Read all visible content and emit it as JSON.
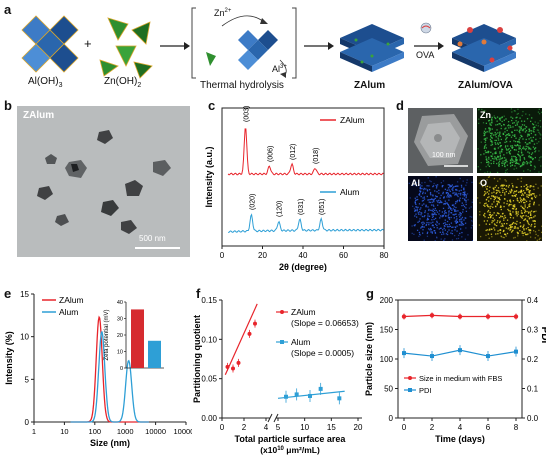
{
  "panel_a": {
    "label": "a",
    "aloh3": "Al(OH)",
    "aloh3_sub": "3",
    "znoh2": "Zn(OH)",
    "znoh2_sub": "2",
    "plus": "+",
    "zn_ion": "Zn",
    "zn_ion_sup": "2+",
    "al_ion": "Al",
    "al_ion_sup": "3+",
    "thermal": "Thermal hydrolysis",
    "zalum": "ZAlum",
    "ova": "OVA",
    "zalum_ova": "ZAlum/OVA"
  },
  "panel_b": {
    "label": "b",
    "title": "ZAlum",
    "scalebar": "500 nm"
  },
  "panel_c": {
    "label": "c",
    "legend_zalum": "ZAlum",
    "legend_alum": "Alum",
    "peaks_zalum": [
      "(003)",
      "(006)",
      "(012)",
      "(018)"
    ],
    "peaks_alum": [
      "(020)",
      "(120)",
      "(031)",
      "(051)"
    ]
  },
  "panel_d": {
    "label": "d",
    "scalebar": "100 nm",
    "zn": "Zn",
    "al": "Al",
    "o": "O"
  },
  "panel_e": {
    "label": "e",
    "legend_zalum": "ZAlum",
    "legend_alum": "Alum"
  },
  "panel_f": {
    "label": "f",
    "zalum_name": "ZAlum",
    "zalum_slope": "(Slope = 0.06653)",
    "alum_name": "Alum",
    "alum_slope": "(Slope = 0.0005)"
  },
  "panel_g": {
    "label": "g",
    "legend_size": "Size in medium with FBS",
    "legend_pdi": "PDI"
  },
  "colors": {
    "zalum": "#e8242b",
    "alum": "#2e9fd6",
    "bar_zalum": "#d62b2f",
    "bar_alum": "#2e9fd6",
    "plot_g": "#1f8fd1",
    "zn": "#3ac24a",
    "al": "#2f5ee0",
    "o": "#e8d52a"
  },
  "chart_data": [
    {
      "type": "line",
      "panel": "c",
      "xlabel": "2θ (degree)",
      "ylabel": "Intensity (a.u.)",
      "xlim": [
        0,
        80
      ],
      "xticks": [
        0,
        20,
        40,
        60,
        80
      ],
      "series": [
        {
          "name": "ZAlum",
          "peaks_x": [
            11.6,
            23.4,
            34.5,
            46.0
          ],
          "peak_labels": [
            "(003)",
            "(006)",
            "(012)",
            "(018)"
          ]
        },
        {
          "name": "Alum",
          "peaks_x": [
            14.5,
            28.0,
            38.4,
            49.0
          ],
          "peak_labels": [
            "(020)",
            "(120)",
            "(031)",
            "(051)"
          ]
        }
      ]
    },
    {
      "type": "line",
      "panel": "e",
      "xlabel": "Size (nm)",
      "ylabel": "Intensity (%)",
      "xscale": "log",
      "xlim": [
        1,
        100000
      ],
      "ylim": [
        0,
        15
      ],
      "xticks": [
        "1",
        "10",
        "100",
        "1000",
        "10000",
        "100000"
      ],
      "yticks": [
        0,
        5,
        10,
        15
      ],
      "series": [
        {
          "name": "ZAlum",
          "peak_x": 140,
          "peak_y": 12.3
        },
        {
          "name": "Alum",
          "peak_x": 170,
          "peak_y": 10.6
        },
        {
          "name": "Alum",
          "peak_x": 1300,
          "peak_y": 7.2
        }
      ],
      "inset": {
        "type": "bar",
        "ylabel": "Zeta potential (mV)",
        "ylim": [
          0,
          40
        ],
        "yticks": [
          0,
          10,
          20,
          30,
          40
        ],
        "categories": [
          "ZAlum",
          "Alum"
        ],
        "values": [
          35.5,
          16.5
        ]
      }
    },
    {
      "type": "scatter",
      "panel": "f",
      "xlabel": "Total particle surface area",
      "xunit": "(x10",
      "xunit_sup": "10",
      "xunit_rest": " μm²/mL)",
      "ylabel": "Partitioning  quotient",
      "ylim": [
        0,
        0.15
      ],
      "yticks": [
        "0.00",
        "0.05",
        "0.10",
        "0.15"
      ],
      "xticks": [
        "0",
        "2",
        "4",
        "5",
        "10",
        "15",
        "20"
      ],
      "xbreak": true,
      "series": [
        {
          "name": "ZAlum",
          "slope": 0.06653,
          "x": [
            0.5,
            1.0,
            1.5,
            2.5,
            3.0
          ],
          "y": [
            0.065,
            0.063,
            0.07,
            0.107,
            0.12
          ]
        },
        {
          "name": "Alum",
          "slope": 0.0005,
          "x": [
            6.5,
            8.5,
            11.0,
            13.0,
            16.5
          ],
          "y": [
            0.027,
            0.03,
            0.028,
            0.037,
            0.025
          ]
        }
      ]
    },
    {
      "type": "line",
      "panel": "g",
      "xlabel": "Time (days)",
      "ylabel": "Particle size (nm)",
      "y2label": "PDI",
      "xlim": [
        0,
        8
      ],
      "ylim": [
        0,
        200
      ],
      "y2lim": [
        0,
        0.4
      ],
      "xticks": [
        0,
        2,
        4,
        6,
        8
      ],
      "yticks": [
        0,
        50,
        100,
        150,
        200
      ],
      "y2ticks": [
        "0.0",
        "0.1",
        "0.2",
        "0.3",
        "0.4"
      ],
      "series": [
        {
          "name": "Size in medium with FBS",
          "x": [
            0,
            2,
            4,
            6,
            8
          ],
          "y": [
            172,
            174,
            172,
            172,
            172
          ]
        },
        {
          "name": "PDI",
          "x": [
            0,
            2,
            4,
            6,
            8
          ],
          "y": [
            0.22,
            0.21,
            0.23,
            0.21,
            0.225
          ]
        }
      ]
    }
  ]
}
